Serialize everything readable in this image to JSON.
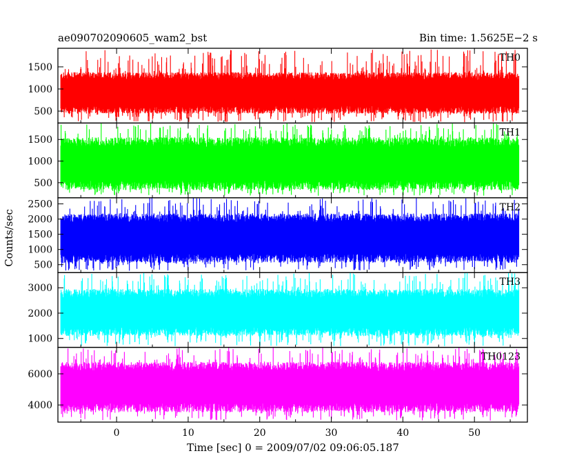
{
  "header": {
    "left_title": "ae090702090605_wam2_bst",
    "right_title": "Bin time: 1.5625E−2 s"
  },
  "chart_data": {
    "type": "line",
    "xlabel": "Time [sec] 0 = 2009/07/02 09:06:05.187",
    "ylabel": "Counts/sec",
    "xlim": [
      -8.2,
      57.4
    ],
    "x_ticks": [
      0,
      10,
      20,
      30,
      40,
      50
    ],
    "x_range_data": [
      -7.8,
      56.2
    ],
    "series": [
      {
        "name": "TH0",
        "color": "#ff0000",
        "ylim": [
          230,
          1920
        ],
        "yticks": [
          500,
          1000,
          1500
        ],
        "typical_low": 520,
        "typical_high": 1300,
        "min": 250,
        "max": 1900
      },
      {
        "name": "TH1",
        "color": "#00ff00",
        "ylim": [
          150,
          1880
        ],
        "yticks": [
          500,
          1000,
          1500
        ],
        "typical_low": 430,
        "typical_high": 1450,
        "min": 200,
        "max": 1880
      },
      {
        "name": "TH2",
        "color": "#0000ff",
        "ylim": [
          240,
          2700
        ],
        "yticks": [
          500,
          1000,
          1500,
          2000,
          2500
        ],
        "typical_low": 700,
        "typical_high": 2050,
        "min": 300,
        "max": 2700
      },
      {
        "name": "TH3",
        "color": "#00ffff",
        "ylim": [
          650,
          3600
        ],
        "yticks": [
          1000,
          2000,
          3000
        ],
        "typical_low": 1250,
        "typical_high": 2800,
        "min": 700,
        "max": 3600
      },
      {
        "name": "TH0123",
        "color": "#ff00ff",
        "ylim": [
          2900,
          7700
        ],
        "yticks": [
          4000,
          6000
        ],
        "typical_low": 3800,
        "typical_high": 6500,
        "min": 3000,
        "max": 7700
      }
    ]
  }
}
